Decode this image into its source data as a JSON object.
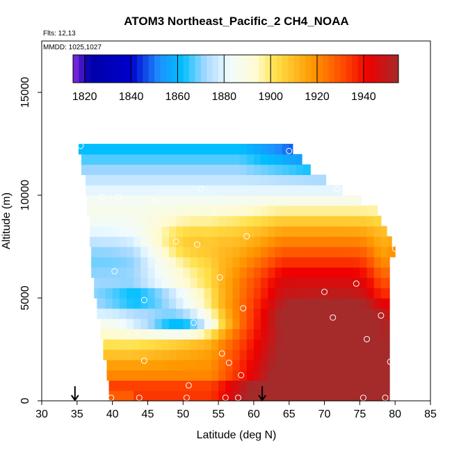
{
  "title": "ATOM3 Northeast_Pacific_2 CH4_NOAA",
  "flights_label": "Flts: 12,13",
  "mmdd_label": "MMDD: 1025,1027",
  "chart_data": {
    "type": "heatmap",
    "title": "ATOM3 Northeast_Pacific_2 CH4_NOAA",
    "xlabel": "Latitude (deg N)",
    "ylabel": "Altitude (m)",
    "xlim": [
      30,
      85
    ],
    "ylim": [
      0,
      17500
    ],
    "xticks": [
      "30",
      "35",
      "40",
      "45",
      "50",
      "55",
      "60",
      "65",
      "70",
      "75",
      "80",
      "85"
    ],
    "yticks": [
      "0",
      "5000",
      "10000",
      "15000"
    ],
    "colorbar": {
      "min": 1815,
      "max": 1955,
      "ticks": [
        "1820",
        "1840",
        "1860",
        "1880",
        "1900",
        "1920",
        "1940"
      ],
      "stops": [
        {
          "v": 1815,
          "c": "#8a2be2"
        },
        {
          "v": 1822,
          "c": "#0000a8"
        },
        {
          "v": 1840,
          "c": "#0000cc"
        },
        {
          "v": 1852,
          "c": "#1e90ff"
        },
        {
          "v": 1862,
          "c": "#00bfff"
        },
        {
          "v": 1872,
          "c": "#a6d8ff"
        },
        {
          "v": 1882,
          "c": "#f0fbff"
        },
        {
          "v": 1894,
          "c": "#fffbd0"
        },
        {
          "v": 1902,
          "c": "#ffe14a"
        },
        {
          "v": 1918,
          "c": "#ff9800"
        },
        {
          "v": 1932,
          "c": "#ff4500"
        },
        {
          "v": 1942,
          "c": "#ee0000"
        },
        {
          "v": 1955,
          "c": "#a52a2a"
        }
      ]
    },
    "sample_points": [
      {
        "x": 35.5,
        "y": 12400
      },
      {
        "x": 65,
        "y": 12150
      },
      {
        "x": 52.5,
        "y": 10300
      },
      {
        "x": 71.8,
        "y": 10300
      },
      {
        "x": 38.5,
        "y": 9900
      },
      {
        "x": 40.8,
        "y": 9900
      },
      {
        "x": 46,
        "y": 9700
      },
      {
        "x": 59,
        "y": 8000
      },
      {
        "x": 49,
        "y": 7750
      },
      {
        "x": 52,
        "y": 7600
      },
      {
        "x": 80,
        "y": 7400
      },
      {
        "x": 40.3,
        "y": 6300
      },
      {
        "x": 55.2,
        "y": 6000
      },
      {
        "x": 74.5,
        "y": 5700
      },
      {
        "x": 50,
        "y": 5200
      },
      {
        "x": 70,
        "y": 5300
      },
      {
        "x": 44.5,
        "y": 4900
      },
      {
        "x": 58.5,
        "y": 4500
      },
      {
        "x": 71.2,
        "y": 4050
      },
      {
        "x": 78,
        "y": 4150
      },
      {
        "x": 51.5,
        "y": 3800
      },
      {
        "x": 76,
        "y": 3000
      },
      {
        "x": 55.5,
        "y": 2300
      },
      {
        "x": 44.5,
        "y": 1950
      },
      {
        "x": 56.5,
        "y": 1850
      },
      {
        "x": 79.3,
        "y": 1900
      },
      {
        "x": 58.2,
        "y": 1250
      },
      {
        "x": 50.8,
        "y": 750
      },
      {
        "x": 39.8,
        "y": 150
      },
      {
        "x": 43.8,
        "y": 150
      },
      {
        "x": 50.5,
        "y": 150
      },
      {
        "x": 56,
        "y": 150
      },
      {
        "x": 57.8,
        "y": 150
      },
      {
        "x": 75.5,
        "y": 150
      },
      {
        "x": 78.6,
        "y": 150
      }
    ],
    "flight_markers": [
      {
        "x": 34.7,
        "y": 0
      },
      {
        "x": 61.2,
        "y": 0
      }
    ],
    "grid": false,
    "legend": "top"
  }
}
